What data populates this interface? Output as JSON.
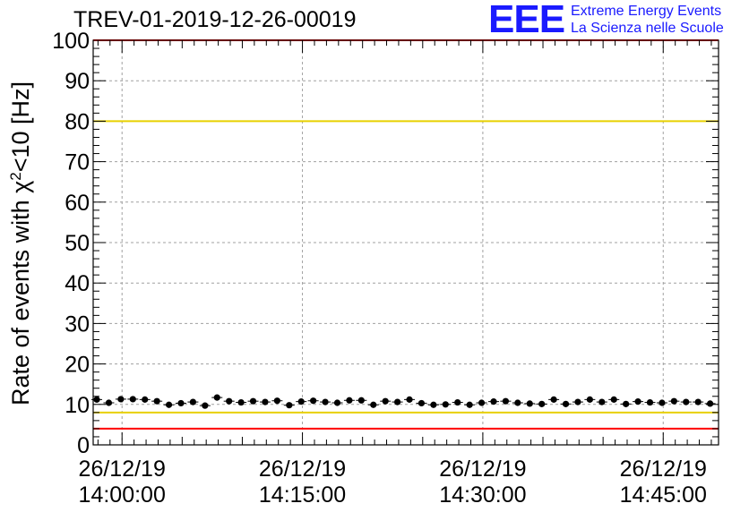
{
  "header": {
    "title": "TREV-01-2019-12-26-00019",
    "logo_text": "EEE",
    "logo_line1": "Extreme Energy Events",
    "logo_line2": "La Scienza nelle Scuole"
  },
  "colors": {
    "limit_red": "#ff0000",
    "limit_yellow": "#e8d000",
    "marker": "#000000",
    "grid": "#a0a0a0",
    "logo": "#1a1aff"
  },
  "chart_data": {
    "type": "scatter",
    "title": "TREV-01-2019-12-26-00019",
    "xlabel": "",
    "ylabel": "Rate of events with χ²<10 [Hz]",
    "ylim": [
      0,
      100
    ],
    "y_ticks": [
      0,
      10,
      20,
      30,
      40,
      50,
      60,
      70,
      80,
      90,
      100
    ],
    "x_ticks": [
      {
        "date": "26/12/19",
        "time": "14:00:00",
        "minute": 0
      },
      {
        "date": "26/12/19",
        "time": "14:15:00",
        "minute": 15
      },
      {
        "date": "26/12/19",
        "time": "14:30:00",
        "minute": 30
      },
      {
        "date": "26/12/19",
        "time": "14:45:00",
        "minute": 45
      }
    ],
    "xlim_minutes": [
      -2.4,
      49.6
    ],
    "x_unit": "minutes after 26/12/19 14:00:00",
    "grid": true,
    "horizontal_lines": [
      {
        "y": 100,
        "color": "red"
      },
      {
        "y": 80,
        "color": "yellow"
      },
      {
        "y": 8,
        "color": "yellow"
      },
      {
        "y": 4,
        "color": "red"
      }
    ],
    "series": [
      {
        "x": [
          -2.1,
          -1.1,
          -0.1,
          0.9,
          1.9,
          2.9,
          3.9,
          4.9,
          5.9,
          6.9,
          7.9,
          8.9,
          9.9,
          10.9,
          11.9,
          12.9,
          13.9,
          14.9,
          15.9,
          16.9,
          17.9,
          18.9,
          19.9,
          20.9,
          21.9,
          22.9,
          23.9,
          24.9,
          25.9,
          26.9,
          27.9,
          28.9,
          29.9,
          30.9,
          31.9,
          32.9,
          33.9,
          34.9,
          35.9,
          36.9,
          37.9,
          38.9,
          39.9,
          40.9,
          41.9,
          42.9,
          43.9,
          44.9,
          45.9,
          46.9,
          47.9,
          48.9
        ],
        "values": [
          11.2,
          10.4,
          11.3,
          11.3,
          11.2,
          10.8,
          9.9,
          10.3,
          10.6,
          9.7,
          11.7,
          10.8,
          10.5,
          10.8,
          10.6,
          10.9,
          9.8,
          10.7,
          10.9,
          10.6,
          10.4,
          11.0,
          11.0,
          9.9,
          10.8,
          10.6,
          11.2,
          10.3,
          9.9,
          10.0,
          10.5,
          9.9,
          10.4,
          10.7,
          10.8,
          10.4,
          10.2,
          10.1,
          11.2,
          10.1,
          10.6,
          11.2,
          10.6,
          11.2,
          10.1,
          10.7,
          10.5,
          10.4,
          10.8,
          10.6,
          10.6,
          10.2
        ],
        "error": 0.55
      }
    ]
  }
}
